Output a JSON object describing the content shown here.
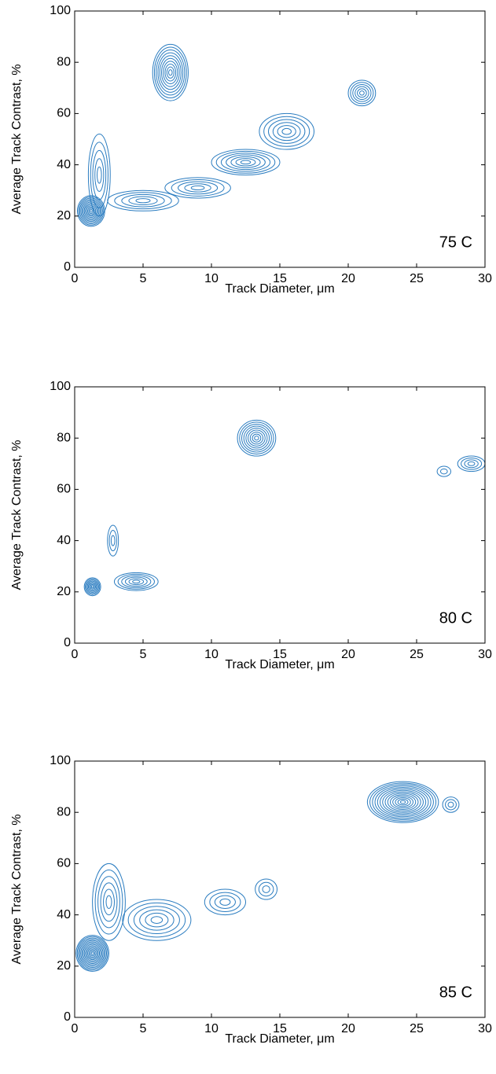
{
  "chart_data": [
    {
      "type": "contour",
      "annotation": "75 C",
      "xlabel": "Track Diameter,   μm",
      "ylabel": "Average Track Contrast, %",
      "xlim": [
        0,
        30
      ],
      "ylim": [
        0,
        100
      ],
      "xticks": [
        0,
        5,
        10,
        15,
        20,
        25,
        30
      ],
      "yticks": [
        0,
        20,
        40,
        60,
        80,
        100
      ],
      "color": "#2a7cc0",
      "clusters": [
        {
          "x": 1.2,
          "y": 22,
          "sx": 1.0,
          "sy": 6,
          "levels": 12
        },
        {
          "x": 1.8,
          "y": 36,
          "sx": 0.8,
          "sy": 16,
          "levels": 5
        },
        {
          "x": 7,
          "y": 76,
          "sx": 1.3,
          "sy": 11,
          "levels": 10
        },
        {
          "x": 5,
          "y": 26,
          "sx": 2.6,
          "sy": 4,
          "levels": 5
        },
        {
          "x": 9,
          "y": 31,
          "sx": 2.4,
          "sy": 4,
          "levels": 5
        },
        {
          "x": 12.5,
          "y": 41,
          "sx": 2.5,
          "sy": 5,
          "levels": 7
        },
        {
          "x": 15.5,
          "y": 53,
          "sx": 2,
          "sy": 7,
          "levels": 6
        },
        {
          "x": 21,
          "y": 68,
          "sx": 1,
          "sy": 5,
          "levels": 6
        }
      ]
    },
    {
      "type": "contour",
      "annotation": "80 C",
      "xlabel": "Track Diameter,   μm",
      "ylabel": "Average Track Contrast, %",
      "xlim": [
        0,
        30
      ],
      "ylim": [
        0,
        100
      ],
      "xticks": [
        0,
        5,
        10,
        15,
        20,
        25,
        30
      ],
      "yticks": [
        0,
        20,
        40,
        60,
        80,
        100
      ],
      "color": "#2a7cc0",
      "clusters": [
        {
          "x": 1.3,
          "y": 22,
          "sx": 0.6,
          "sy": 3.5,
          "levels": 8
        },
        {
          "x": 4.5,
          "y": 24,
          "sx": 1.6,
          "sy": 3.5,
          "levels": 6
        },
        {
          "x": 2.8,
          "y": 40,
          "sx": 0.4,
          "sy": 6,
          "levels": 3
        },
        {
          "x": 13.3,
          "y": 80,
          "sx": 1.4,
          "sy": 7,
          "levels": 9
        },
        {
          "x": 29,
          "y": 70,
          "sx": 1,
          "sy": 3,
          "levels": 4
        },
        {
          "x": 27,
          "y": 67,
          "sx": 0.5,
          "sy": 2,
          "levels": 2
        }
      ]
    },
    {
      "type": "contour",
      "annotation": "85 C",
      "xlabel": "Track Diameter,   μm",
      "ylabel": "Average Track Contrast, %",
      "xlim": [
        0,
        30
      ],
      "ylim": [
        0,
        100
      ],
      "xticks": [
        0,
        5,
        10,
        15,
        20,
        25,
        30
      ],
      "yticks": [
        0,
        20,
        40,
        60,
        80,
        100
      ],
      "color": "#2a7cc0",
      "clusters": [
        {
          "x": 1.3,
          "y": 25,
          "sx": 1.2,
          "sy": 7,
          "levels": 14
        },
        {
          "x": 2.5,
          "y": 45,
          "sx": 1.2,
          "sy": 15,
          "levels": 6
        },
        {
          "x": 6,
          "y": 38,
          "sx": 2.5,
          "sy": 8,
          "levels": 6
        },
        {
          "x": 11,
          "y": 45,
          "sx": 1.5,
          "sy": 5,
          "levels": 4
        },
        {
          "x": 14,
          "y": 50,
          "sx": 0.8,
          "sy": 4,
          "levels": 3
        },
        {
          "x": 24,
          "y": 84,
          "sx": 2.6,
          "sy": 8,
          "levels": 14
        },
        {
          "x": 27.5,
          "y": 83,
          "sx": 0.6,
          "sy": 3,
          "levels": 3
        }
      ]
    }
  ]
}
